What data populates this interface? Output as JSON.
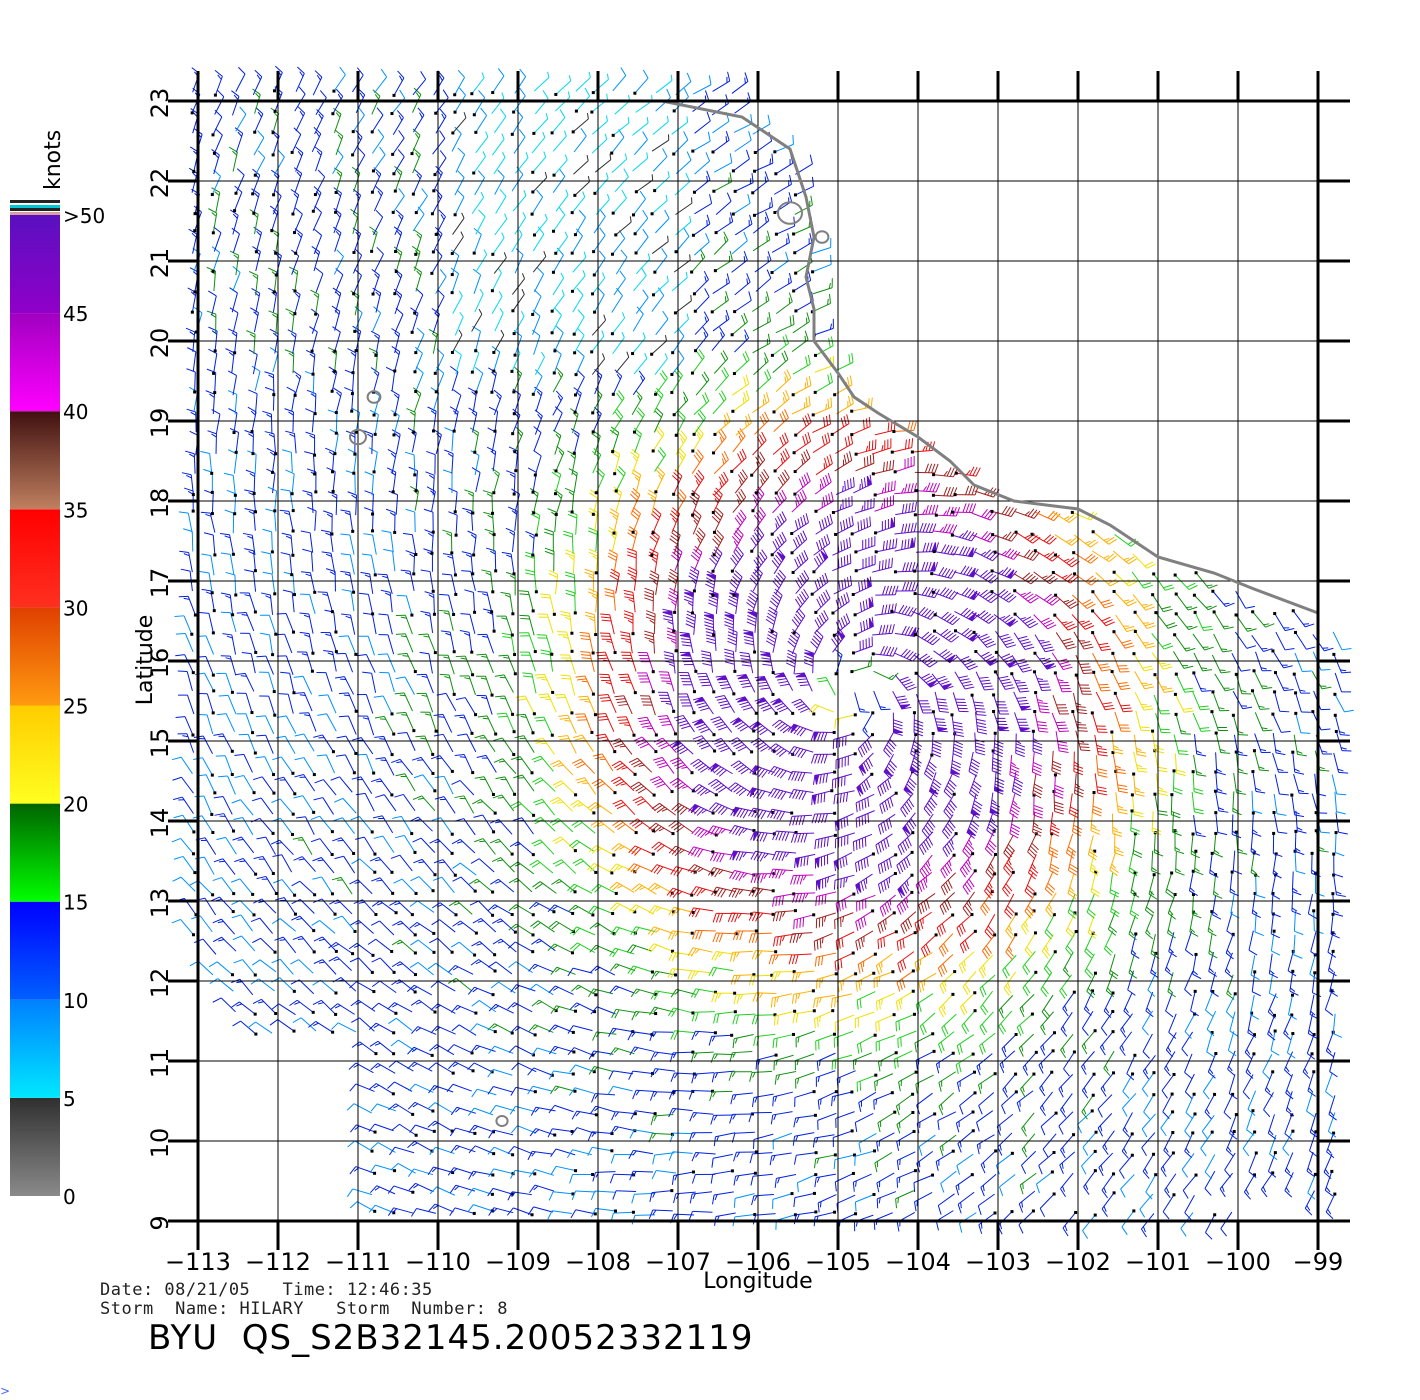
{
  "colorbar": {
    "unit": "knots",
    "tick_labels": [
      "0",
      "5",
      "10",
      "15",
      "20",
      "25",
      "30",
      "35",
      "40",
      "45",
      ">50"
    ],
    "bands": [
      {
        "from": 0,
        "to": 5,
        "top": "#303030",
        "bottom": "#8a8a8a"
      },
      {
        "from": 5,
        "to": 10,
        "top": "#0080ff",
        "bottom": "#00e8ff"
      },
      {
        "from": 10,
        "to": 15,
        "top": "#0000ff",
        "bottom": "#0060ff"
      },
      {
        "from": 15,
        "to": 20,
        "top": "#006400",
        "bottom": "#00ff00"
      },
      {
        "from": 20,
        "to": 25,
        "top": "#ffcc00",
        "bottom": "#ffff20"
      },
      {
        "from": 25,
        "to": 30,
        "top": "#e04000",
        "bottom": "#ff9a10"
      },
      {
        "from": 30,
        "to": 35,
        "top": "#ff0000",
        "bottom": "#ff3020"
      },
      {
        "from": 35,
        "to": 40,
        "top": "#401010",
        "bottom": "#c08060"
      },
      {
        "from": 40,
        "to": 45,
        "top": "#a000c0",
        "bottom": "#ff00ff"
      },
      {
        "from": 45,
        "to": 50,
        "top": "#5a10c0",
        "bottom": "#9000c8"
      }
    ]
  },
  "map": {
    "lon_range": [
      -113,
      -99
    ],
    "lat_range": [
      9,
      23
    ],
    "x_ticks": [
      -113,
      -112,
      -111,
      -110,
      -109,
      -108,
      -107,
      -106,
      -105,
      -104,
      -103,
      -102,
      -101,
      -100,
      -99
    ],
    "x_tick_labels": [
      "−113",
      "−112",
      "−111",
      "−110",
      "−109",
      "−108",
      "−107",
      "−106",
      "−105",
      "−104",
      "−103",
      "−102",
      "−101",
      "−100",
      "−99"
    ],
    "y_ticks": [
      9,
      10,
      11,
      12,
      13,
      14,
      15,
      16,
      17,
      18,
      19,
      20,
      21,
      22,
      23
    ],
    "y_tick_labels": [
      "9",
      "10",
      "11",
      "12",
      "13",
      "14",
      "15",
      "16",
      "17",
      "18",
      "19",
      "20",
      "21",
      "22",
      "23"
    ],
    "xlabel": "Longitude",
    "ylabel": "Latitude",
    "grid": true,
    "coast_color": "#808080",
    "storm_center": {
      "lon": -104.8,
      "lat": 15.6
    },
    "coastline": [
      [
        -109.8,
        23.0
      ],
      [
        -108.5,
        23.0
      ],
      [
        -107.2,
        23.0
      ],
      [
        -106.2,
        22.8
      ],
      [
        -105.6,
        22.4
      ],
      [
        -105.4,
        21.8
      ],
      [
        -105.3,
        21.3
      ],
      [
        -105.4,
        20.8
      ],
      [
        -105.3,
        20.4
      ],
      [
        -105.3,
        20.0
      ],
      [
        -105.0,
        19.6
      ],
      [
        -104.8,
        19.3
      ],
      [
        -104.5,
        19.1
      ],
      [
        -104.0,
        18.8
      ],
      [
        -103.6,
        18.5
      ],
      [
        -103.3,
        18.2
      ],
      [
        -102.8,
        18.0
      ],
      [
        -102.0,
        17.9
      ],
      [
        -101.6,
        17.7
      ],
      [
        -101.0,
        17.3
      ],
      [
        -100.3,
        17.1
      ],
      [
        -99.8,
        16.9
      ],
      [
        -99.0,
        16.6
      ]
    ],
    "islands": [
      {
        "lon": -105.6,
        "lat": 21.6,
        "r": 0.15
      },
      {
        "lon": -105.2,
        "lat": 21.3,
        "r": 0.08
      },
      {
        "lon": -110.8,
        "lat": 19.3,
        "r": 0.08
      },
      {
        "lon": -111.0,
        "lat": 18.8,
        "r": 0.1
      },
      {
        "lon": -109.2,
        "lat": 10.25,
        "r": 0.07
      }
    ]
  },
  "info": {
    "date_line": "Date: 08/21/05   Time: 12:46:35",
    "storm_line": "Storm  Name: HILARY   Storm  Number: 8",
    "product": "BYU  QS_S2B32145.20052332119"
  },
  "corner_mark": ">"
}
